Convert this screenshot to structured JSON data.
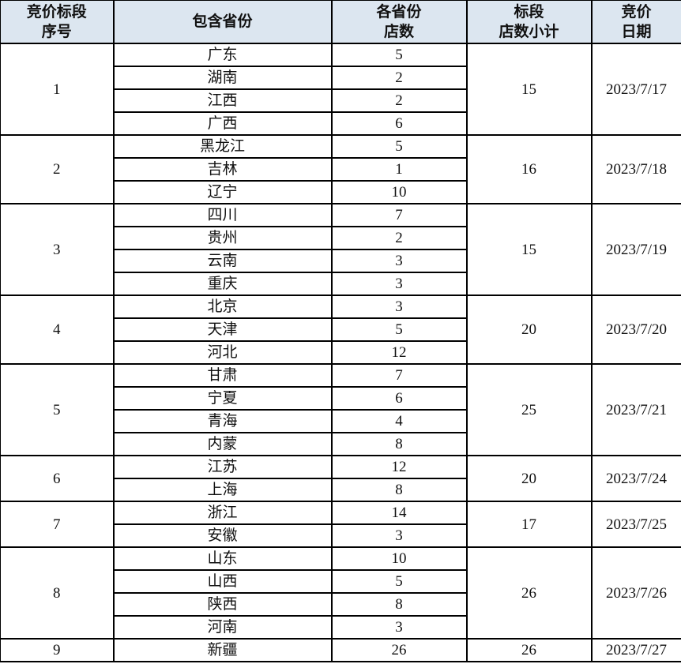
{
  "headers": [
    "竞价标段\n序号",
    "包含省份",
    "各省份\n店数",
    "标段\n店数小计",
    "竞价\n日期"
  ],
  "header_bg": "#dce6f0",
  "groups": [
    {
      "seq": "1",
      "subtotal": "15",
      "date": "2023/7/17",
      "provinces": [
        [
          "广东",
          "5"
        ],
        [
          "湖南",
          "2"
        ],
        [
          "江西",
          "2"
        ],
        [
          "广西",
          "6"
        ]
      ]
    },
    {
      "seq": "2",
      "subtotal": "16",
      "date": "2023/7/18",
      "provinces": [
        [
          "黑龙江",
          "5"
        ],
        [
          "吉林",
          "1"
        ],
        [
          "辽宁",
          "10"
        ]
      ]
    },
    {
      "seq": "3",
      "subtotal": "15",
      "date": "2023/7/19",
      "provinces": [
        [
          "四川",
          "7"
        ],
        [
          "贵州",
          "2"
        ],
        [
          "云南",
          "3"
        ],
        [
          "重庆",
          "3"
        ]
      ]
    },
    {
      "seq": "4",
      "subtotal": "20",
      "date": "2023/7/20",
      "provinces": [
        [
          "北京",
          "3"
        ],
        [
          "天津",
          "5"
        ],
        [
          "河北",
          "12"
        ]
      ]
    },
    {
      "seq": "5",
      "subtotal": "25",
      "date": "2023/7/21",
      "provinces": [
        [
          "甘肃",
          "7"
        ],
        [
          "宁夏",
          "6"
        ],
        [
          "青海",
          "4"
        ],
        [
          "内蒙",
          "8"
        ]
      ]
    },
    {
      "seq": "6",
      "subtotal": "20",
      "date": "2023/7/24",
      "provinces": [
        [
          "江苏",
          "12"
        ],
        [
          "上海",
          "8"
        ]
      ]
    },
    {
      "seq": "7",
      "subtotal": "17",
      "date": "2023/7/25",
      "provinces": [
        [
          "浙江",
          "14"
        ],
        [
          "安徽",
          "3"
        ]
      ]
    },
    {
      "seq": "8",
      "subtotal": "26",
      "date": "2023/7/26",
      "provinces": [
        [
          "山东",
          "10"
        ],
        [
          "山西",
          "5"
        ],
        [
          "陕西",
          "8"
        ],
        [
          "河南",
          "3"
        ]
      ]
    },
    {
      "seq": "9",
      "subtotal": "26",
      "date": "2023/7/27",
      "provinces": [
        [
          "新疆",
          "26"
        ]
      ]
    }
  ]
}
